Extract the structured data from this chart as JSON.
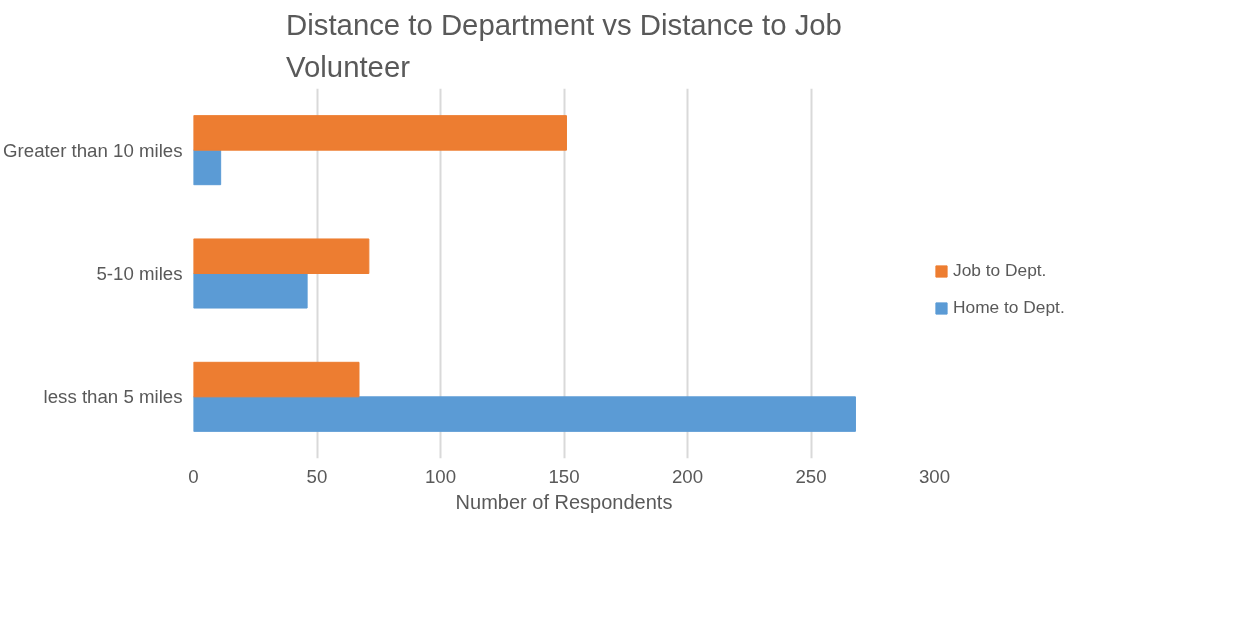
{
  "chart_data": {
    "type": "bar",
    "orientation": "horizontal",
    "title": "Distance to Department vs Distance to Job Volunteer",
    "xlabel": "Number of Respondents",
    "categories": [
      "Greater than 10 miles",
      "5-10 miles",
      "less than 5 miles"
    ],
    "series": [
      {
        "name": "Home to Dept.",
        "color": "#5b9bd5",
        "values": [
          11,
          46,
          268
        ]
      },
      {
        "name": "Job to Dept.",
        "color": "#ed7d31",
        "values": [
          151,
          71,
          67
        ]
      }
    ],
    "xlim": [
      0,
      300
    ],
    "xticks": [
      0,
      50,
      100,
      150,
      200,
      250,
      300
    ],
    "grid": "x",
    "legend": "right"
  }
}
